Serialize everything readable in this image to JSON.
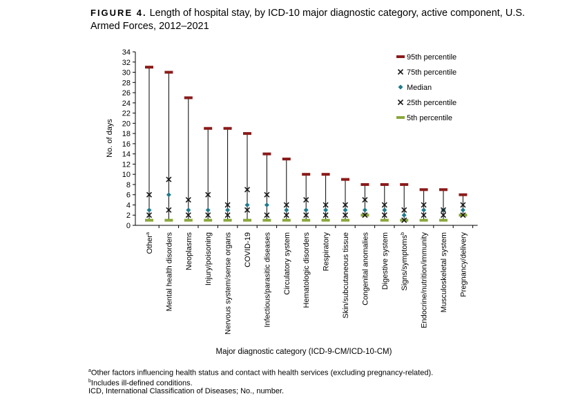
{
  "figure": {
    "label": "FIGURE 4.",
    "title": "Length of hospital stay, by ICD-10 major diagnostic category, active component, U.S. Armed Forces, 2012–2021"
  },
  "colors": {
    "p95": "#8b1a1a",
    "p75": "#1a1a1a",
    "median": "#1f7a8c",
    "p25": "#1a1a1a",
    "p5": "#8aa83b",
    "whisker": "#000000"
  },
  "chart_data": {
    "type": "range-plot",
    "xlabel": "Major diagnostic category (ICD-9-CM/ICD-10-CM)",
    "ylabel": "No. of days",
    "ylim": [
      0,
      34
    ],
    "yticks": [
      0,
      2,
      4,
      6,
      8,
      10,
      12,
      14,
      16,
      18,
      20,
      22,
      24,
      26,
      28,
      30,
      32,
      34
    ],
    "legend_position": "top-right",
    "categories": [
      {
        "label": "Other",
        "sup": "a"
      },
      {
        "label": "Mental health disorders",
        "sup": ""
      },
      {
        "label": "Neoplasms",
        "sup": ""
      },
      {
        "label": "Injury/poisoning",
        "sup": ""
      },
      {
        "label": "Nervous system/sense organs",
        "sup": ""
      },
      {
        "label": "COVID-19",
        "sup": ""
      },
      {
        "label": "Infectious/parasitic diseases",
        "sup": ""
      },
      {
        "label": "Circulatory system",
        "sup": ""
      },
      {
        "label": "Hematologic disorders",
        "sup": ""
      },
      {
        "label": "Respiratory",
        "sup": ""
      },
      {
        "label": "Skin/subcutaneous tissue",
        "sup": ""
      },
      {
        "label": "Congenital anomalies",
        "sup": ""
      },
      {
        "label": "Digestive system",
        "sup": ""
      },
      {
        "label": "Signs/symptoms",
        "sup": "b"
      },
      {
        "label": "Endocrine/nutrition/immunity",
        "sup": ""
      },
      {
        "label": "Musculoskeletal system",
        "sup": ""
      },
      {
        "label": "Pregnancy/delivery",
        "sup": ""
      }
    ],
    "series": [
      {
        "key": "p95",
        "name": "95th percentile",
        "marker": "dash",
        "values": [
          31,
          30,
          25,
          19,
          19,
          18,
          14,
          13,
          10,
          10,
          9,
          8,
          8,
          8,
          7,
          7,
          6
        ]
      },
      {
        "key": "p75",
        "name": "75th percentile",
        "marker": "x",
        "values": [
          6,
          9,
          5,
          6,
          4,
          7,
          6,
          4,
          5,
          4,
          4,
          5,
          4,
          3,
          4,
          3,
          4
        ]
      },
      {
        "key": "median",
        "name": "Median",
        "marker": "diamond",
        "values": [
          3,
          6,
          3,
          3,
          3,
          4,
          4,
          3,
          3,
          3,
          3,
          3,
          3,
          2,
          3,
          3,
          3
        ]
      },
      {
        "key": "p25",
        "name": "25th percentile",
        "marker": "x",
        "values": [
          2,
          3,
          2,
          2,
          2,
          3,
          2,
          2,
          2,
          2,
          2,
          2,
          2,
          1,
          2,
          2,
          2
        ]
      },
      {
        "key": "p5",
        "name": "5th percentile",
        "marker": "dash",
        "values": [
          1,
          1,
          1,
          1,
          1,
          1,
          1,
          1,
          1,
          1,
          1,
          2,
          1,
          1,
          1,
          1,
          2
        ]
      }
    ]
  },
  "footnotes": {
    "a_sup": "a",
    "a_text": "Other factors influencing health status and contact with health services (excluding pregnancy-related).",
    "b_sup": "b",
    "b_text": "Includes ill-defined conditions.",
    "abbrev": "ICD, International Classification of Diseases; No., number."
  }
}
